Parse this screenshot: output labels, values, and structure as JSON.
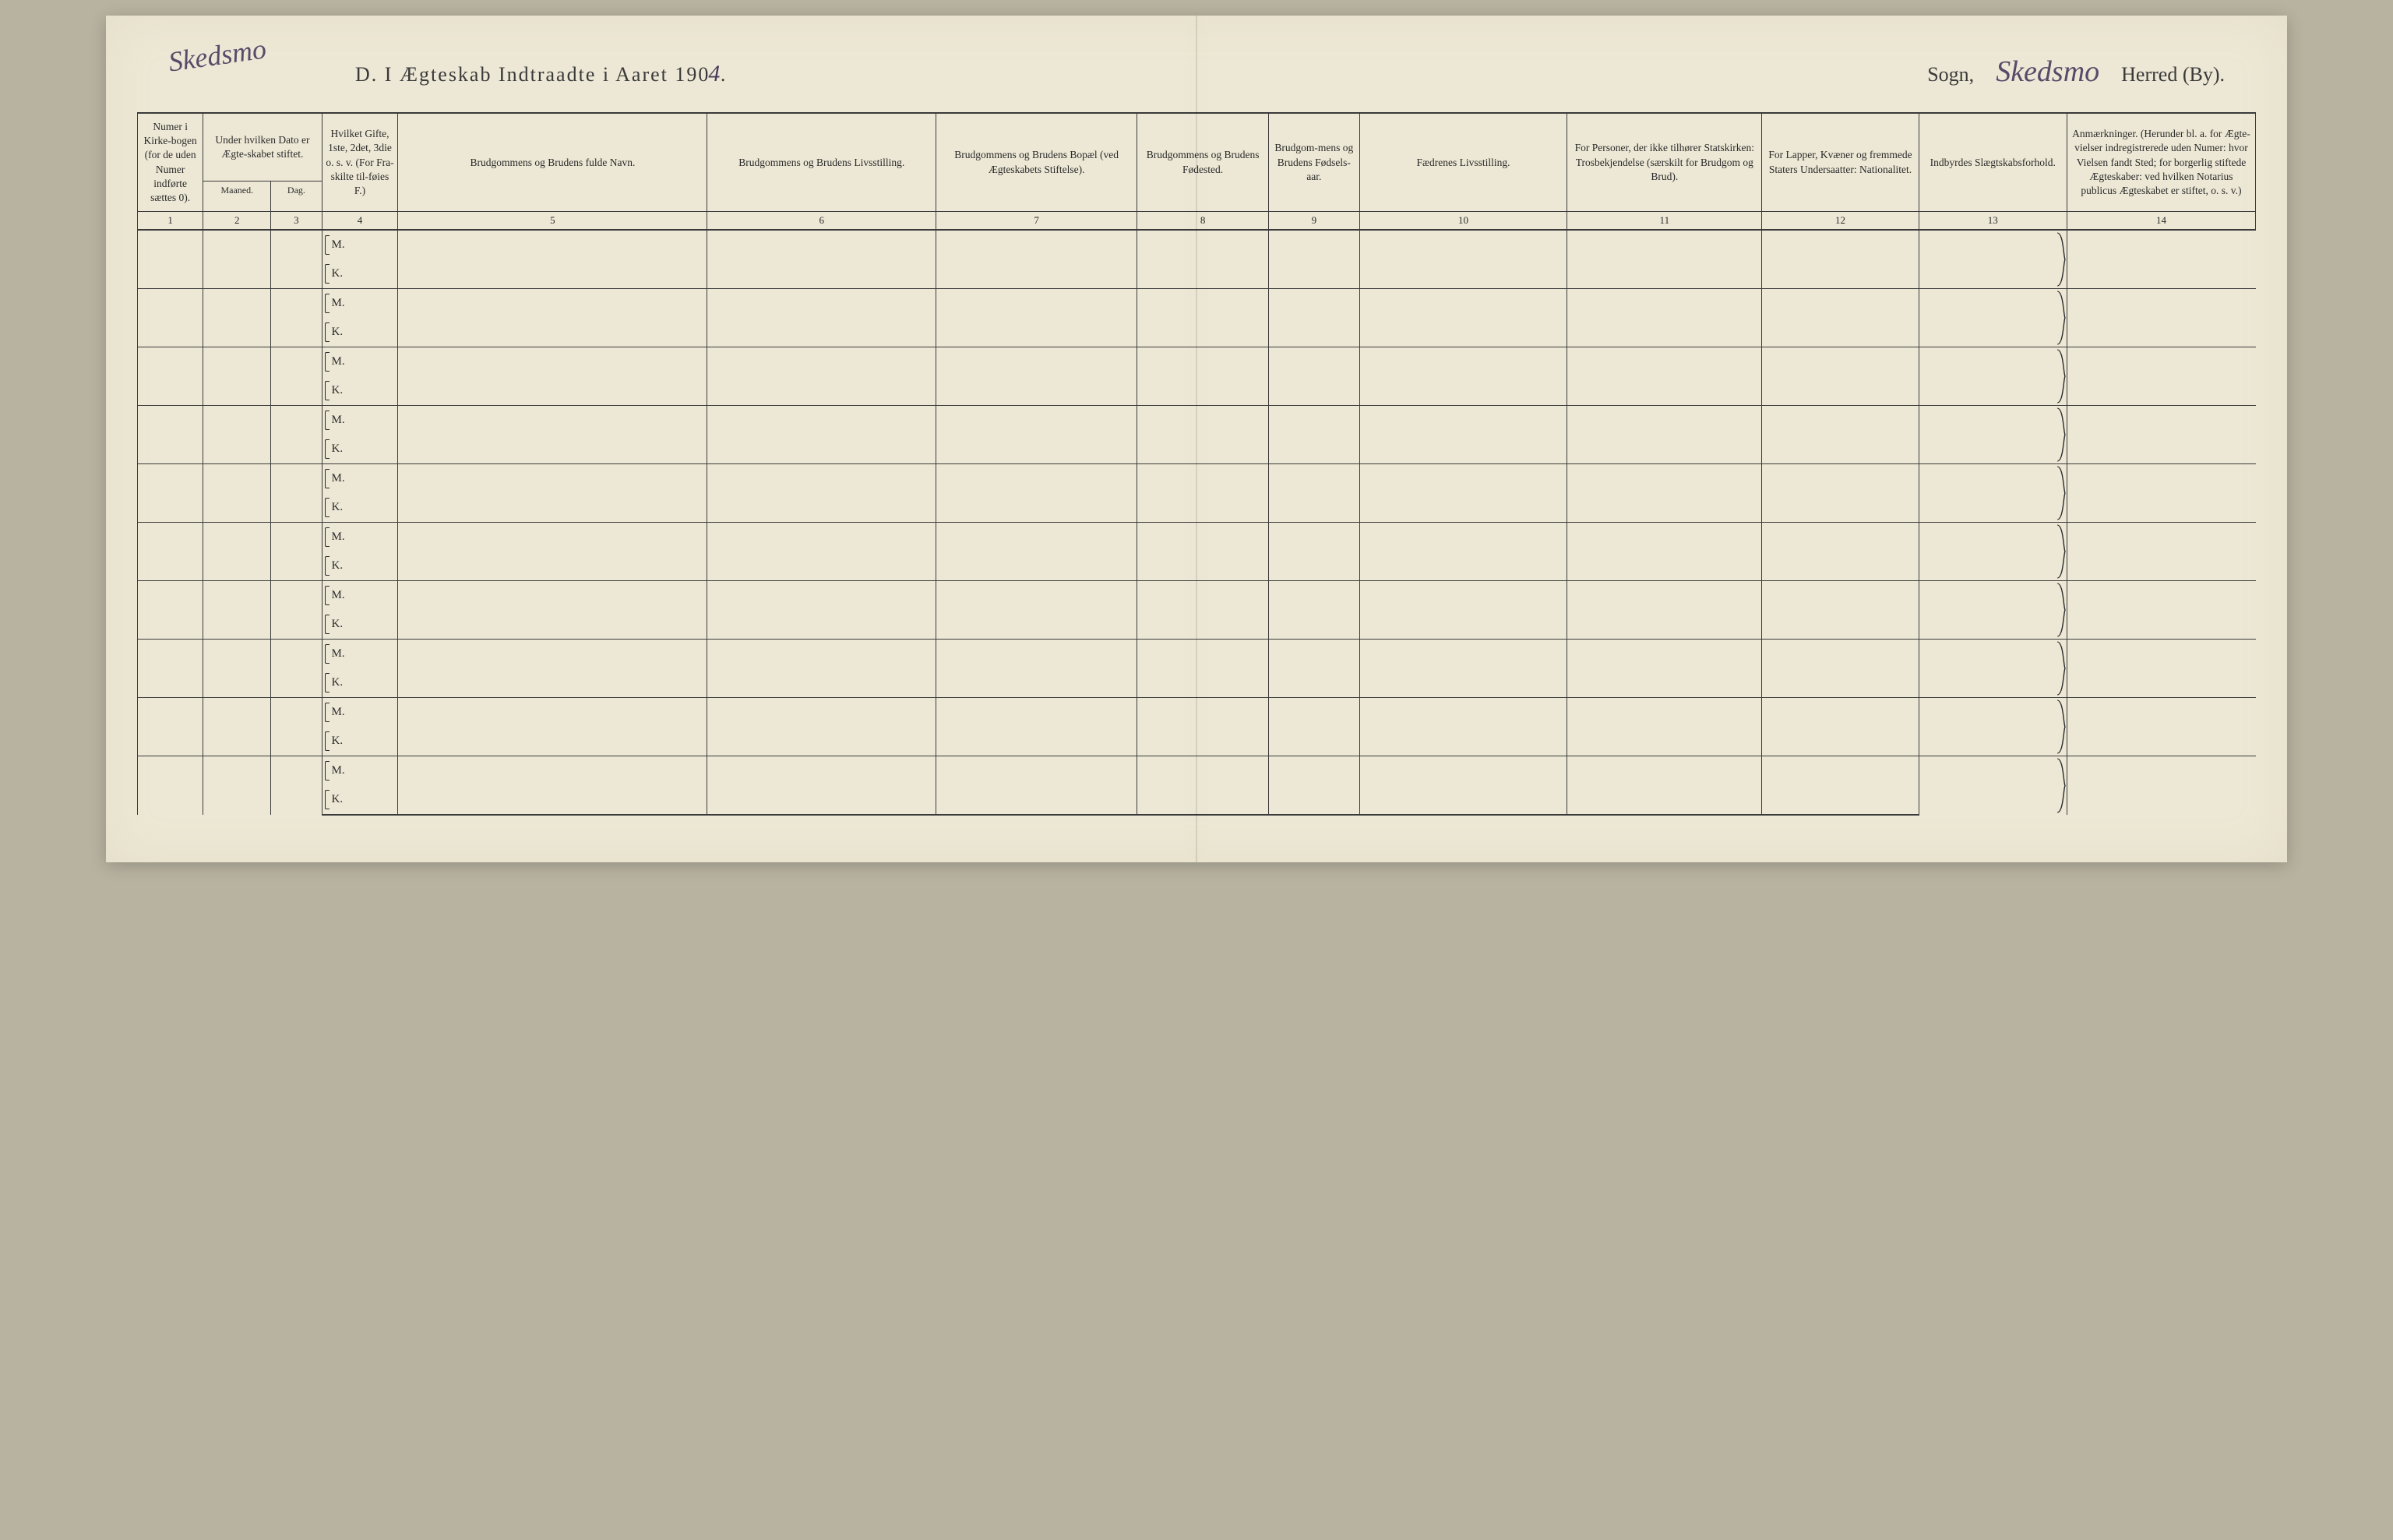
{
  "page": {
    "background_color": "#ede8d5",
    "line_color": "#3a3a3a",
    "handwriting_color": "#5a4a6a",
    "text_color": "#2a2a2a"
  },
  "heading": {
    "corner_handwritten": "Skedsmo",
    "left_printed": "D.  I Ægteskab Indtraadte i Aaret 190",
    "year_hand": "4",
    "year_period": ".",
    "right_sogn_label": "Sogn,",
    "right_sogn_hand": "Skedsmo",
    "right_herred": "Herred (By)."
  },
  "columns": [
    {
      "num": "1",
      "label": "Numer i Kirke-bogen (for de uden Numer indførte sættes 0).",
      "cls": "c1"
    },
    {
      "num": "2",
      "label": "Under hvilken Dato er Ægte-skabet stiftet.",
      "sub1": "Maaned.",
      "cls": "c2"
    },
    {
      "num": "3",
      "label": "",
      "sub1": "Dag.",
      "cls": "c3"
    },
    {
      "num": "4",
      "label": "Hvilket Gifte, 1ste, 2det, 3die o. s. v. (For Fra-skilte til-føies F.)",
      "cls": "c4"
    },
    {
      "num": "5",
      "label": "Brudgommens og Brudens fulde Navn.",
      "cls": "c5"
    },
    {
      "num": "6",
      "label": "Brudgommens og Brudens Livsstilling.",
      "cls": "c6"
    },
    {
      "num": "7",
      "label": "Brudgommens og Brudens Bopæl (ved Ægteskabets Stiftelse).",
      "cls": "c7"
    },
    {
      "num": "8",
      "label": "Brudgommens og Brudens Fødested.",
      "cls": "c8"
    },
    {
      "num": "9",
      "label": "Brudgom-mens og Brudens Fødsels-aar.",
      "cls": "c9"
    },
    {
      "num": "10",
      "label": "Fædrenes Livsstilling.",
      "cls": "c10"
    },
    {
      "num": "11",
      "label": "For Personer, der ikke tilhører Statskirken: Trosbekjendelse (særskilt for Brudgom og Brud).",
      "cls": "c11"
    },
    {
      "num": "12",
      "label": "For Lapper, Kvæner og fremmede Staters Undersaatter: Nationalitet.",
      "cls": "c12"
    },
    {
      "num": "13",
      "label": "Indbyrdes Slægtskabsforhold.",
      "cls": "c13"
    },
    {
      "num": "14",
      "label": "Anmærkninger. (Herunder bl. a. for Ægte-vielser indregistrerede uden Numer: hvor Vielsen fandt Sted; for borgerlig stiftede Ægteskaber: ved hvilken Notarius publicus Ægteskabet er stiftet, o. s. v.)",
      "cls": "c14"
    }
  ],
  "row_labels": {
    "m": "M.",
    "k": "K."
  },
  "row_block_count": 10,
  "brace_columns": [
    1,
    2,
    3,
    13,
    14
  ],
  "font": {
    "heading_size_pt": 18,
    "header_cell_size_pt": 10,
    "colnum_size_pt": 10,
    "body_size_pt": 11
  }
}
